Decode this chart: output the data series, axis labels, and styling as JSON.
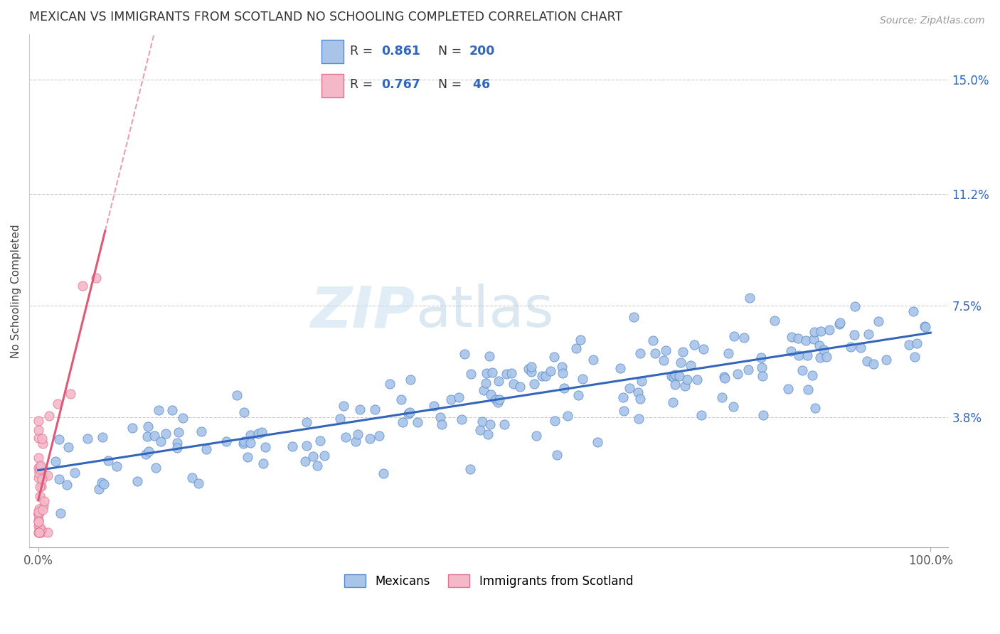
{
  "title": "MEXICAN VS IMMIGRANTS FROM SCOTLAND NO SCHOOLING COMPLETED CORRELATION CHART",
  "source": "Source: ZipAtlas.com",
  "ylabel": "No Schooling Completed",
  "ytick_labels": [
    "3.8%",
    "7.5%",
    "11.2%",
    "15.0%"
  ],
  "ytick_values": [
    0.038,
    0.075,
    0.112,
    0.15
  ],
  "legend_r_blue": "0.861",
  "legend_n_blue": "200",
  "legend_r_pink": "0.767",
  "legend_n_pink": "46",
  "blue_fill": "#a8c4e8",
  "blue_edge": "#5588cc",
  "blue_line": "#3366bb",
  "pink_fill": "#f4b8c8",
  "pink_edge": "#e07090",
  "pink_line": "#e05878",
  "pink_dash": "#e8a0b0",
  "mexicans_label": "Mexicans",
  "scotland_label": "Immigrants from Scotland",
  "watermark_zip_color": "#c8dff0",
  "watermark_atlas_color": "#b0cce0",
  "xlim": [
    -0.01,
    1.02
  ],
  "ylim": [
    -0.005,
    0.165
  ],
  "blue_seed": 12,
  "pink_seed": 99
}
